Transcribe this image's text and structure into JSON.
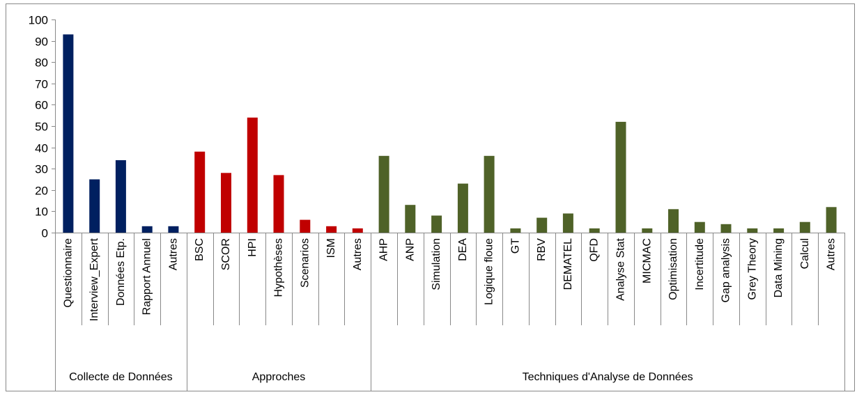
{
  "chart_data": {
    "type": "bar",
    "title": "",
    "xlabel": "",
    "ylabel": "",
    "ylim": [
      0,
      100
    ],
    "yticks": [
      0,
      10,
      20,
      30,
      40,
      50,
      60,
      70,
      80,
      90,
      100
    ],
    "grid": false,
    "legend": "none",
    "groups": [
      {
        "name": "Collecte de Données",
        "color": "#002060",
        "categories": [
          "Questionnaire",
          "Interview_Expert",
          "Données Etp.",
          "Rapport Annuel",
          "Autres"
        ],
        "values": [
          93,
          25,
          34,
          3,
          3
        ]
      },
      {
        "name": "Approches",
        "color": "#C00000",
        "categories": [
          "BSC",
          "SCOR",
          "HPI",
          "Hypothèses",
          "Scenarios",
          "ISM",
          "Autres"
        ],
        "values": [
          38,
          28,
          54,
          27,
          6,
          3,
          2
        ]
      },
      {
        "name": "Techniques d'Analyse de Données",
        "color": "#4F6228",
        "categories": [
          "AHP",
          "ANP",
          "Simulation",
          "DEA",
          "Logique floue",
          "GT",
          "RBV",
          "DEMATEL",
          "QFD",
          "Analyse Stat",
          "MICMAC",
          "Optimisation",
          "Incertitude",
          "Gap analysis",
          "Grey Theory",
          "Data Mining",
          "Calcul",
          "Autres"
        ],
        "values": [
          36,
          13,
          8,
          23,
          36,
          2,
          7,
          9,
          2,
          52,
          2,
          11,
          5,
          4,
          2,
          2,
          5,
          12
        ]
      }
    ]
  }
}
